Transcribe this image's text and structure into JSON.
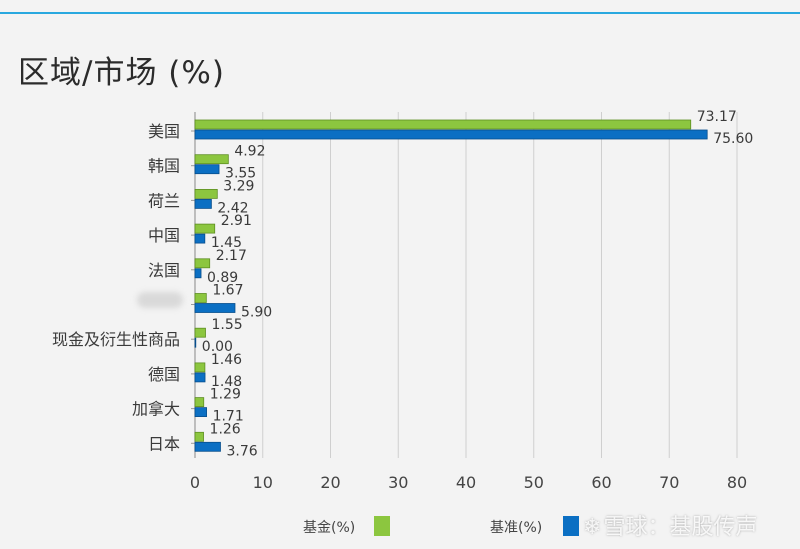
{
  "colors": {
    "fund": "#8cc63f",
    "benchmark": "#0b6fc3",
    "grid": "#cfcfcf",
    "accent": "#29a8df"
  },
  "chart_data": {
    "type": "bar",
    "orientation": "horizontal",
    "title": "区域/市场 (%)",
    "categories": [
      "美国",
      "韩国",
      "荷兰",
      "中国",
      "法国",
      "",
      "现金及衍生性商品",
      "德国",
      "加拿大",
      "日本"
    ],
    "series": [
      {
        "name": "基金(%)",
        "values": [
          73.17,
          4.92,
          3.29,
          2.91,
          2.17,
          1.67,
          1.55,
          1.46,
          1.29,
          1.26
        ]
      },
      {
        "name": "基准(%)",
        "values": [
          75.6,
          3.55,
          2.42,
          1.45,
          0.89,
          5.9,
          0.0,
          1.48,
          1.71,
          3.76
        ]
      }
    ],
    "value_labels": [
      [
        "73.17",
        "4.92",
        "3.29",
        "2.91",
        "2.17",
        "1.67",
        "1.55",
        "1.46",
        "1.29",
        "1.26"
      ],
      [
        "75.60",
        "3.55",
        "2.42",
        "1.45",
        "0.89",
        "5.90",
        "0.00",
        "1.48",
        "1.71",
        "3.76"
      ]
    ],
    "xlim": [
      0,
      80
    ],
    "xticks": [
      0,
      10,
      20,
      30,
      40,
      50,
      60,
      70,
      80
    ],
    "grid": "vertical",
    "legend_position": "bottom"
  },
  "legend": {
    "fund_label": "基金(%)",
    "benchmark_label": "基准(%)"
  },
  "watermark": {
    "text": "雪球：基股传声"
  }
}
